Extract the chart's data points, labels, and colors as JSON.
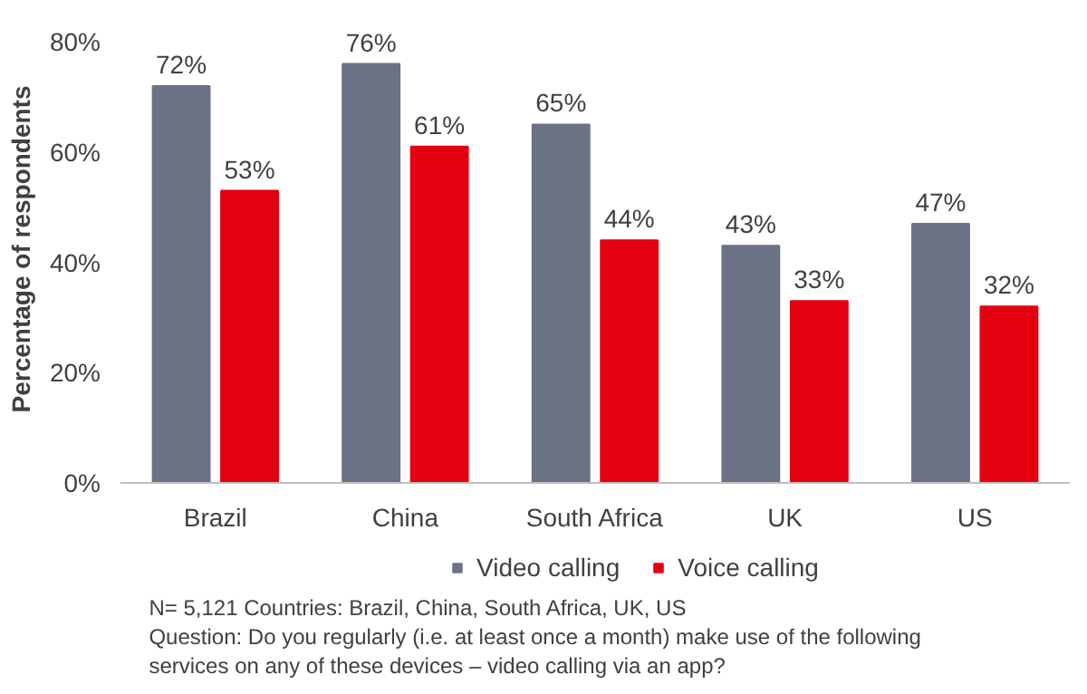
{
  "chart_data": {
    "type": "bar",
    "ylabel": "Percentage of respondents",
    "categories": [
      "Brazil",
      "China",
      "South Africa",
      "UK",
      "US"
    ],
    "series": [
      {
        "name": "Video calling",
        "color": "#6b7285",
        "values": [
          72,
          76,
          65,
          43,
          47
        ],
        "value_labels": [
          "72%",
          "76%",
          "65%",
          "43%",
          "47%"
        ]
      },
      {
        "name": "Voice calling",
        "color": "#e3000f",
        "values": [
          53,
          61,
          44,
          33,
          32
        ],
        "value_labels": [
          "53%",
          "61%",
          "44%",
          "33%",
          "32%"
        ]
      }
    ],
    "ylim": [
      0,
      80
    ],
    "yticks": [
      {
        "value": 0,
        "label": "0%"
      },
      {
        "value": 20,
        "label": "20%"
      },
      {
        "value": 40,
        "label": "40%"
      },
      {
        "value": 60,
        "label": "60%"
      },
      {
        "value": 80,
        "label": "80%"
      }
    ],
    "grid": false,
    "legend": "bottom",
    "annotations": [
      "N= 5,121 Countries: Brazil, China, South Africa, UK, US",
      "Question: Do you regularly (i.e. at least once a month) make use of the following services on any of these devices – video calling via an app?"
    ]
  }
}
